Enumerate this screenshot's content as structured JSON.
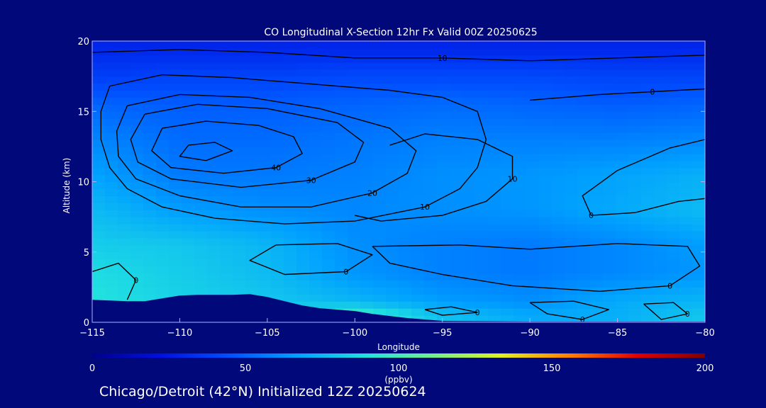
{
  "chart_data": {
    "type": "heatmap",
    "title": "CO Longitudinal X-Section 12hr  Fx Valid 00Z 20250625",
    "xlabel": "Longitude",
    "ylabel": "Altitude (km)",
    "xlim": [
      -115,
      -80
    ],
    "ylim": [
      0,
      20
    ],
    "x_ticks": [
      -115,
      -110,
      -105,
      -100,
      -95,
      -90,
      -85,
      -80
    ],
    "x_tick_labels": [
      "−115",
      "−110",
      "−105",
      "−100",
      "−95",
      "−90",
      "−85",
      "−80"
    ],
    "y_ticks": [
      0,
      5,
      10,
      15,
      20
    ],
    "y_tick_labels": [
      "0",
      "5",
      "10",
      "15",
      "20"
    ],
    "colorbar": {
      "range": [
        0,
        200
      ],
      "ticks": [
        0,
        50,
        100,
        150,
        200
      ],
      "tick_labels": [
        "0",
        "50",
        "100",
        "150",
        "200"
      ],
      "unit": "(ppbv)",
      "colors": [
        "#00008a",
        "#0010e0",
        "#0050ff",
        "#00a0ff",
        "#20e0e0",
        "#70f090",
        "#e0f020",
        "#ff8000",
        "#e00000",
        "#800000"
      ]
    },
    "field_rows": [
      {
        "y": 19.5,
        "x": [
          -115,
          -110,
          -105,
          -100,
          -95,
          -90,
          -85,
          -80
        ],
        "v": [
          30,
          30,
          30,
          30,
          30,
          30,
          30,
          30
        ]
      },
      {
        "y": 17.5,
        "x": [
          -115,
          -110,
          -105,
          -100,
          -95,
          -90,
          -85,
          -80
        ],
        "v": [
          38,
          40,
          40,
          42,
          42,
          42,
          40,
          40
        ]
      },
      {
        "y": 15.5,
        "x": [
          -115,
          -110,
          -105,
          -100,
          -95,
          -90,
          -85,
          -80
        ],
        "v": [
          50,
          48,
          48,
          50,
          52,
          50,
          48,
          50
        ]
      },
      {
        "y": 13,
        "x": [
          -115,
          -110,
          -105,
          -100,
          -95,
          -90,
          -85,
          -80
        ],
        "v": [
          60,
          52,
          52,
          55,
          58,
          58,
          58,
          60
        ]
      },
      {
        "y": 10.5,
        "x": [
          -115,
          -110,
          -105,
          -100,
          -95,
          -90,
          -85,
          -80
        ],
        "v": [
          68,
          56,
          56,
          58,
          62,
          64,
          68,
          72
        ]
      },
      {
        "y": 8,
        "x": [
          -115,
          -110,
          -105,
          -100,
          -95,
          -90,
          -85,
          -80
        ],
        "v": [
          76,
          66,
          62,
          60,
          62,
          64,
          70,
          76
        ]
      },
      {
        "y": 5.5,
        "x": [
          -115,
          -110,
          -105,
          -100,
          -95,
          -90,
          -85,
          -80
        ],
        "v": [
          82,
          80,
          74,
          62,
          58,
          56,
          60,
          66
        ]
      },
      {
        "y": 3.5,
        "x": [
          -115,
          -110,
          -105,
          -100,
          -95,
          -90,
          -85,
          -80
        ],
        "v": [
          88,
          82,
          76,
          64,
          58,
          56,
          60,
          64
        ]
      },
      {
        "y": 1.5,
        "x": [
          -115,
          -110,
          -105,
          -100,
          -95,
          -90,
          -85,
          -80
        ],
        "v": [
          90,
          84,
          80,
          74,
          66,
          62,
          70,
          74
        ]
      },
      {
        "y": 0.5,
        "x": [
          -115,
          -110,
          -105,
          -100,
          -95,
          -90,
          -85,
          -80
        ],
        "v": [
          90,
          84,
          82,
          100,
          78,
          70,
          72,
          80
        ]
      }
    ],
    "terrain": {
      "x": [
        -115,
        -114,
        -113,
        -112,
        -111,
        -110,
        -109,
        -108,
        -107,
        -106,
        -105,
        -104,
        -103,
        -102,
        -101,
        -100,
        -99,
        -98,
        -97,
        -96,
        -95,
        -90,
        -85,
        -80
      ],
      "y": [
        1.6,
        1.55,
        1.5,
        1.5,
        1.7,
        1.9,
        1.95,
        1.95,
        1.95,
        2.0,
        1.8,
        1.5,
        1.2,
        1.0,
        0.9,
        0.8,
        0.6,
        0.45,
        0.3,
        0.2,
        0.1,
        0.05,
        0.05,
        0.05
      ]
    },
    "contours": [
      {
        "label": "10",
        "points": [
          [
            -115,
            19.2
          ],
          [
            -110,
            19.4
          ],
          [
            -105,
            19.2
          ],
          [
            -100,
            18.8
          ],
          [
            -95,
            18.8
          ],
          [
            -90,
            18.6
          ],
          [
            -85,
            18.8
          ],
          [
            -80,
            19.0
          ]
        ]
      },
      {
        "label": "10",
        "points": [
          [
            -114,
            16.8
          ],
          [
            -111,
            17.6
          ],
          [
            -107,
            17.4
          ],
          [
            -103,
            17.0
          ],
          [
            -98,
            16.5
          ],
          [
            -95,
            16.0
          ],
          [
            -93,
            15.0
          ],
          [
            -92.5,
            13.0
          ],
          [
            -93,
            11.0
          ],
          [
            -94,
            9.5
          ],
          [
            -96,
            8.2
          ],
          [
            -100,
            7.2
          ],
          [
            -104,
            7.0
          ],
          [
            -108,
            7.4
          ],
          [
            -111,
            8.2
          ],
          [
            -113,
            9.5
          ],
          [
            -114,
            11.0
          ],
          [
            -114.5,
            13.0
          ],
          [
            -114.5,
            15.0
          ],
          [
            -114,
            16.8
          ]
        ]
      },
      {
        "label": "20",
        "points": [
          [
            -113,
            15.4
          ],
          [
            -110,
            16.2
          ],
          [
            -106,
            16.0
          ],
          [
            -102,
            15.2
          ],
          [
            -98,
            13.8
          ],
          [
            -96.5,
            12.2
          ],
          [
            -97,
            10.6
          ],
          [
            -99,
            9.2
          ],
          [
            -102.5,
            8.2
          ],
          [
            -106.5,
            8.2
          ],
          [
            -110,
            9.0
          ],
          [
            -112.5,
            10.2
          ],
          [
            -113.5,
            11.8
          ],
          [
            -113.6,
            13.6
          ],
          [
            -113,
            15.4
          ]
        ]
      },
      {
        "label": "30",
        "points": [
          [
            -112,
            14.8
          ],
          [
            -109,
            15.5
          ],
          [
            -105,
            15.2
          ],
          [
            -101,
            14.2
          ],
          [
            -99.5,
            12.8
          ],
          [
            -100,
            11.4
          ],
          [
            -102.5,
            10.1
          ],
          [
            -106.5,
            9.6
          ],
          [
            -110.5,
            10.2
          ],
          [
            -112.4,
            11.4
          ],
          [
            -112.8,
            13.0
          ],
          [
            -112,
            14.8
          ]
        ]
      },
      {
        "label": "40",
        "points": [
          [
            -111,
            13.8
          ],
          [
            -108.5,
            14.3
          ],
          [
            -105.5,
            14.0
          ],
          [
            -103.5,
            13.2
          ],
          [
            -103,
            12.0
          ],
          [
            -104.5,
            11.0
          ],
          [
            -107.5,
            10.6
          ],
          [
            -110.5,
            11.0
          ],
          [
            -111.6,
            12.2
          ],
          [
            -111,
            13.8
          ]
        ]
      },
      {
        "label": "",
        "points": [
          [
            -109.5,
            12.6
          ],
          [
            -108,
            12.8
          ],
          [
            -107,
            12.2
          ],
          [
            -108.5,
            11.5
          ],
          [
            -110,
            11.8
          ],
          [
            -109.5,
            12.6
          ]
        ]
      },
      {
        "label": "0",
        "points": [
          [
            -104.5,
            5.5
          ],
          [
            -101,
            5.6
          ],
          [
            -99,
            4.8
          ],
          [
            -100.5,
            3.6
          ],
          [
            -104,
            3.4
          ],
          [
            -106,
            4.4
          ],
          [
            -104.5,
            5.5
          ]
        ]
      },
      {
        "label": "0",
        "points": [
          [
            -99,
            5.4
          ],
          [
            -94,
            5.5
          ],
          [
            -90,
            5.2
          ],
          [
            -85,
            5.6
          ],
          [
            -81,
            5.4
          ],
          [
            -80.3,
            4.0
          ],
          [
            -82,
            2.6
          ],
          [
            -86,
            2.2
          ],
          [
            -91,
            2.6
          ],
          [
            -95,
            3.4
          ],
          [
            -98,
            4.2
          ],
          [
            -99,
            5.4
          ]
        ]
      },
      {
        "label": "10",
        "points": [
          [
            -98,
            12.6
          ],
          [
            -96,
            13.4
          ],
          [
            -93,
            13.0
          ],
          [
            -91,
            11.8
          ],
          [
            -91,
            10.2
          ],
          [
            -92.5,
            8.6
          ],
          [
            -95,
            7.6
          ],
          [
            -98.5,
            7.2
          ],
          [
            -100,
            7.6
          ]
        ]
      },
      {
        "label": "0",
        "points": [
          [
            -90,
            15.8
          ],
          [
            -86,
            16.2
          ],
          [
            -83,
            16.4
          ],
          [
            -80,
            16.6
          ]
        ]
      },
      {
        "label": "0",
        "points": [
          [
            -80,
            13.0
          ],
          [
            -82,
            12.4
          ],
          [
            -85,
            10.8
          ],
          [
            -87,
            9.0
          ],
          [
            -86.5,
            7.6
          ],
          [
            -84,
            7.8
          ],
          [
            -81.5,
            8.6
          ],
          [
            -80,
            8.8
          ]
        ]
      },
      {
        "label": "0",
        "points": [
          [
            -115,
            3.6
          ],
          [
            -113.5,
            4.2
          ],
          [
            -112.5,
            3.0
          ],
          [
            -113,
            1.6
          ]
        ]
      },
      {
        "label": "0",
        "points": [
          [
            -96,
            0.9
          ],
          [
            -94.5,
            1.1
          ],
          [
            -93,
            0.7
          ],
          [
            -95,
            0.5
          ],
          [
            -96,
            0.9
          ]
        ]
      },
      {
        "label": "0",
        "points": [
          [
            -90,
            1.4
          ],
          [
            -87.5,
            1.5
          ],
          [
            -85.5,
            0.9
          ],
          [
            -87,
            0.2
          ],
          [
            -89,
            0.6
          ],
          [
            -90,
            1.4
          ]
        ]
      },
      {
        "label": "0",
        "points": [
          [
            -83.5,
            1.3
          ],
          [
            -81.8,
            1.4
          ],
          [
            -81,
            0.6
          ],
          [
            -82.5,
            0.2
          ],
          [
            -83.5,
            1.3
          ]
        ]
      }
    ]
  },
  "footer_text": "Chicago/Detroit (42°N) Initialized 12Z 20250624"
}
